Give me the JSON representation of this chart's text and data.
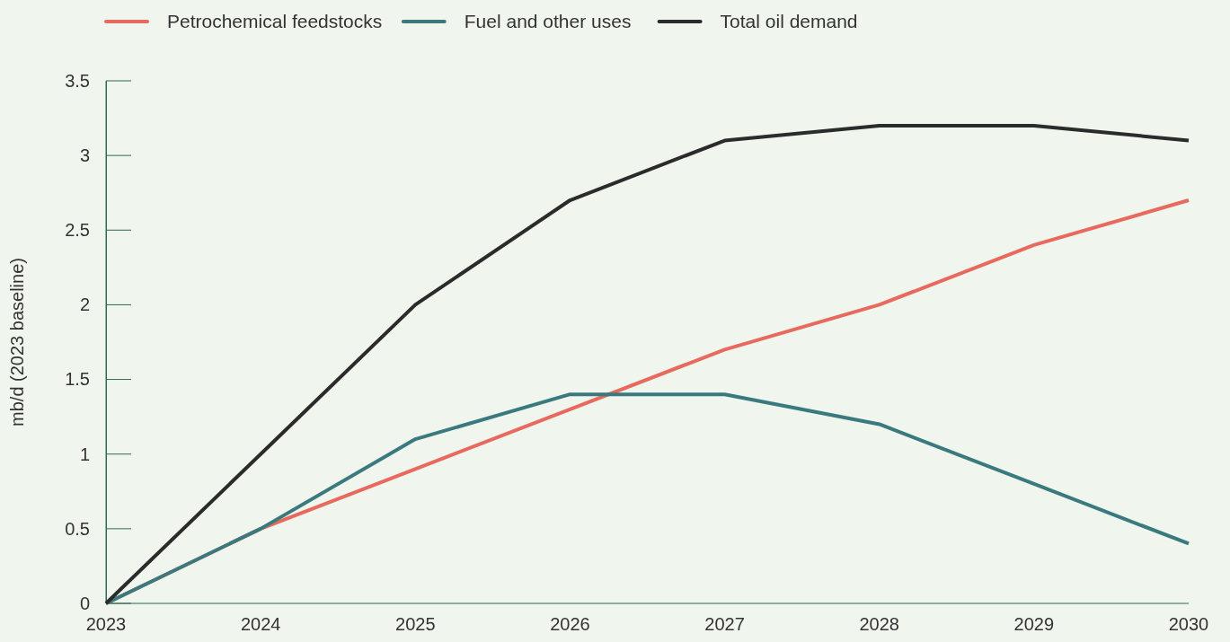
{
  "chart_data": {
    "type": "line",
    "ylabel": "mb/d (2023 baseline)",
    "x": [
      2023,
      2024,
      2025,
      2026,
      2027,
      2028,
      2029,
      2030
    ],
    "xlim": [
      2023,
      2030
    ],
    "xticks": [
      2023,
      2024,
      2025,
      2026,
      2027,
      2028,
      2029,
      2030
    ],
    "ylim": [
      0,
      3.5
    ],
    "yticks": [
      0,
      0.5,
      1,
      1.5,
      2,
      2.5,
      3,
      3.5
    ],
    "series": [
      {
        "name": "Petrochemical feedstocks",
        "color": "#e8695d",
        "values": [
          0,
          0.5,
          0.9,
          1.3,
          1.7,
          2.0,
          2.4,
          2.7
        ]
      },
      {
        "name": "Fuel and other uses",
        "color": "#3a7a7e",
        "values": [
          0,
          0.5,
          1.1,
          1.4,
          1.4,
          1.2,
          0.8,
          0.4
        ]
      },
      {
        "name": "Total oil demand",
        "color": "#2b2b2b",
        "values": [
          0,
          1.0,
          2.0,
          2.7,
          3.1,
          3.2,
          3.2,
          3.1
        ]
      }
    ],
    "grid": false,
    "legend": "top left",
    "marker": "none",
    "line_style": "solid"
  }
}
